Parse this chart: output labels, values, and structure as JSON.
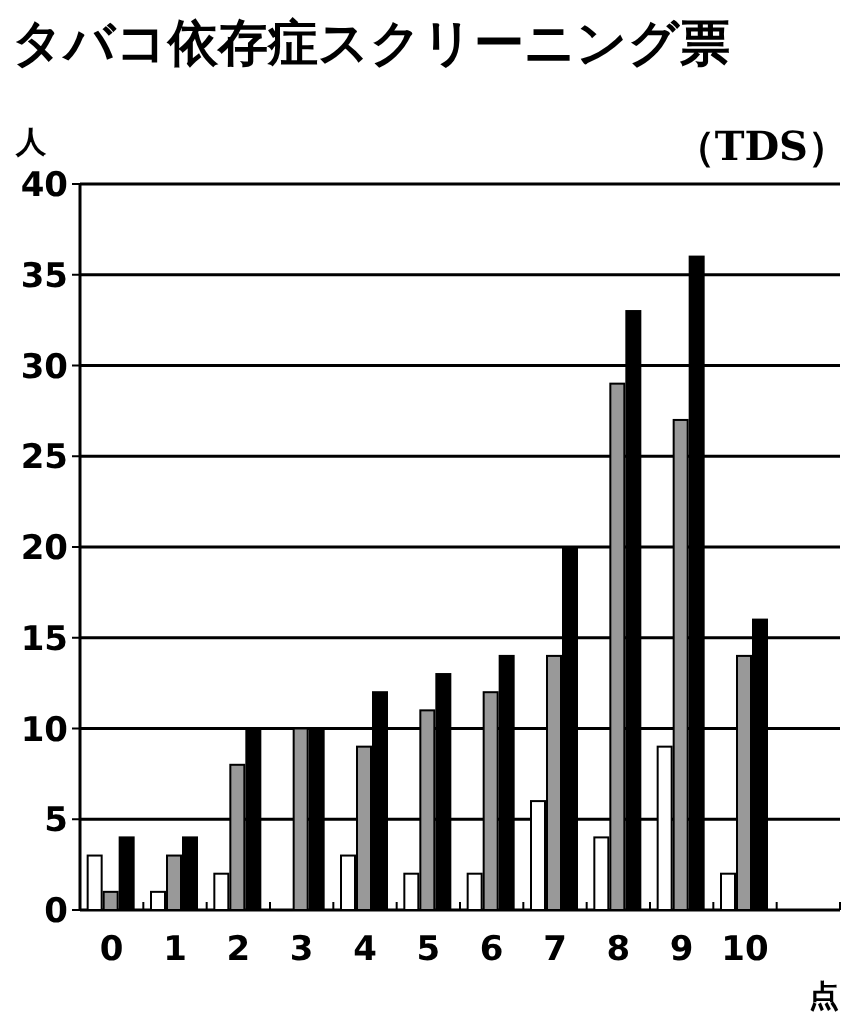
{
  "chart_data": {
    "type": "bar",
    "title": "タバコ依存症スクリーニング票",
    "subtitle": "（TDS）",
    "ylabel": "人",
    "xlabel": "点",
    "categories": [
      "0",
      "1",
      "2",
      "3",
      "4",
      "5",
      "6",
      "7",
      "8",
      "9",
      "10",
      null
    ],
    "series": [
      {
        "color": "#ffffff",
        "values": [
          3,
          1,
          2,
          0,
          3,
          2,
          2,
          6,
          4,
          9,
          2,
          null
        ]
      },
      {
        "color": "#999999",
        "values": [
          1,
          3,
          8,
          10,
          9,
          11,
          12,
          14,
          29,
          27,
          14,
          null
        ]
      },
      {
        "color": "#000000",
        "values": [
          4,
          4,
          10,
          10,
          12,
          13,
          14,
          20,
          33,
          36,
          16,
          null
        ]
      }
    ],
    "ylim": [
      0,
      40
    ],
    "yticks": [
      0,
      5,
      10,
      15,
      20,
      25,
      30,
      35,
      40
    ],
    "grid": "y"
  }
}
